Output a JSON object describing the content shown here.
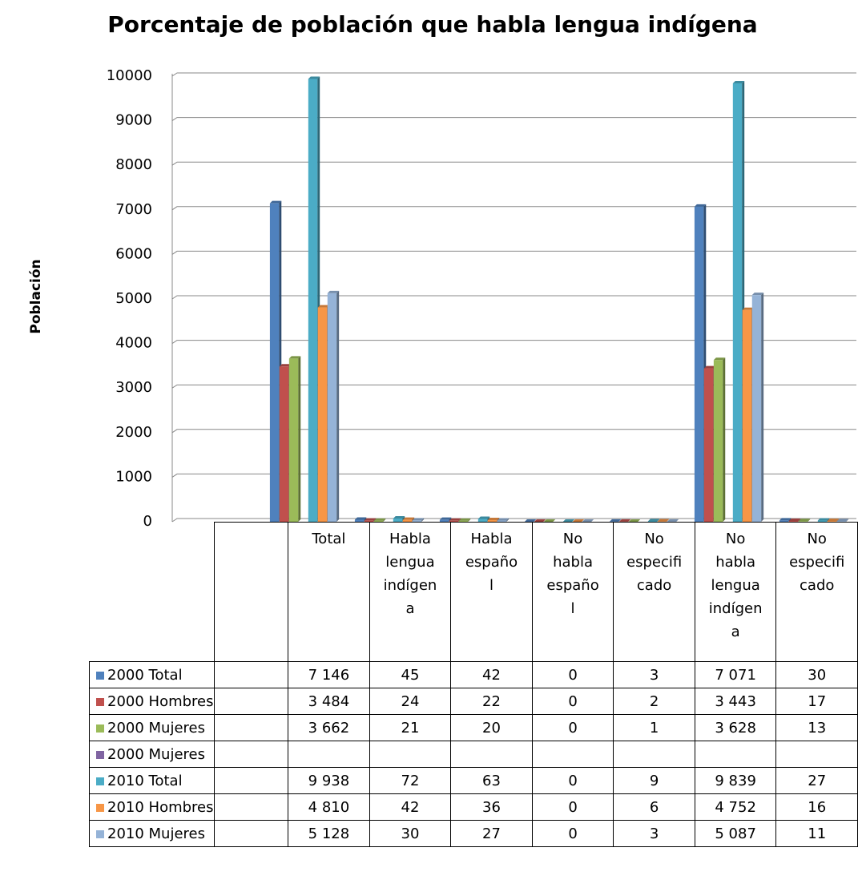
{
  "chart_data": {
    "type": "bar",
    "title": "Porcentaje de población que habla lengua indígena",
    "y_label": "Población",
    "categories": [
      null,
      "Total",
      "Habla lengua indígena",
      "Habla español",
      "No habla español",
      "No especificado",
      "No habla lengua indígena",
      "No especificado"
    ],
    "ylim": [
      0,
      10000
    ],
    "yticks": [
      0,
      1000,
      2000,
      3000,
      4000,
      5000,
      6000,
      7000,
      8000,
      9000,
      10000
    ],
    "grid": true,
    "series": [
      {
        "name": "2000 Total",
        "color": "#4f81bd",
        "values": [
          null,
          7146,
          45,
          42,
          0,
          3,
          7071,
          30
        ],
        "value_labels": [
          null,
          "7 146",
          "45",
          "42",
          "0",
          "3",
          "7 071",
          "30"
        ]
      },
      {
        "name": "2000 Hombres",
        "color": "#c0504d",
        "values": [
          null,
          3484,
          24,
          22,
          0,
          2,
          3443,
          17
        ],
        "value_labels": [
          null,
          "3 484",
          "24",
          "22",
          "0",
          "2",
          "3 443",
          "17"
        ]
      },
      {
        "name": "2000 Mujeres",
        "color": "#9bbb59",
        "values": [
          null,
          3662,
          21,
          20,
          0,
          1,
          3628,
          13
        ],
        "value_labels": [
          null,
          "3 662",
          "21",
          "20",
          "0",
          "1",
          "3 628",
          "13"
        ]
      },
      {
        "name": "2000 Mujeres",
        "color": "#8064a2",
        "values": [
          null,
          null,
          null,
          null,
          null,
          null,
          null,
          null
        ]
      },
      {
        "name": "2010 Total",
        "color": "#4bacc6",
        "values": [
          null,
          9938,
          72,
          63,
          0,
          9,
          9839,
          27
        ],
        "value_labels": [
          null,
          "9 938",
          "72",
          "63",
          "0",
          "9",
          "9 839",
          "27"
        ]
      },
      {
        "name": "2010 Hombres",
        "color": "#f79646",
        "values": [
          null,
          4810,
          42,
          36,
          0,
          6,
          4752,
          16
        ],
        "value_labels": [
          null,
          "4 810",
          "42",
          "36",
          "0",
          "6",
          "4 752",
          "16"
        ]
      },
      {
        "name": "2010 Mujeres",
        "color": "#95b3d7",
        "values": [
          null,
          5128,
          30,
          27,
          0,
          3,
          5087,
          11
        ],
        "value_labels": [
          null,
          "5 128",
          "30",
          "27",
          "0",
          "3",
          "5 087",
          "11"
        ]
      }
    ]
  }
}
